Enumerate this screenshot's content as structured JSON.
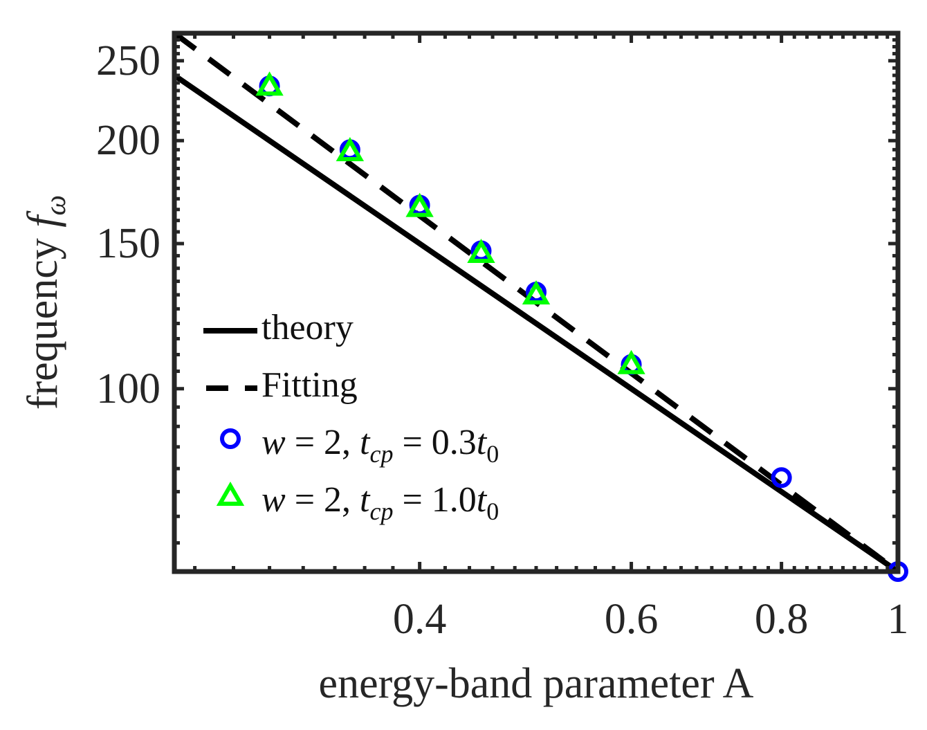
{
  "chart_data": {
    "type": "line",
    "xscale": "log",
    "yscale": "log",
    "xlabel": "energy-band parameter A",
    "ylabel_prefix": "frequency",
    "ylabel_symbol": "f",
    "ylabel_subscript": "ω",
    "xlim": [
      0.25,
      1.0
    ],
    "ylim": [
      60,
      270
    ],
    "xticks": [
      0.4,
      0.6,
      0.8,
      1.0
    ],
    "xtick_labels": [
      "0.4",
      "0.6",
      "0.8",
      "1"
    ],
    "yticks": [
      100,
      150,
      200,
      250
    ],
    "ytick_labels": [
      "100",
      "150",
      "200",
      "250"
    ],
    "legend_position": "lower-left",
    "series": [
      {
        "name": "theory",
        "style": "solid",
        "color": "#000000",
        "x": [
          0.25,
          1.0
        ],
        "y": [
          240,
          60
        ]
      },
      {
        "name": "Fitting",
        "style": "dashed",
        "color": "#000000",
        "x": [
          0.25,
          1.0
        ],
        "y": [
          270,
          60
        ]
      },
      {
        "name": "w = 2, t_cp = 0.3t_0",
        "marker": "circle",
        "color": "#0000ff",
        "x": [
          0.3,
          0.35,
          0.4,
          0.45,
          0.5,
          0.6,
          0.8,
          1.0
        ],
        "y": [
          233,
          195,
          167,
          147,
          131,
          107,
          78,
          60
        ]
      },
      {
        "name": "w = 2, t_cp = 1.0t_0",
        "marker": "triangle",
        "color": "#00ff00",
        "x": [
          0.3,
          0.35,
          0.4,
          0.45,
          0.5,
          0.6
        ],
        "y": [
          233,
          194,
          166,
          146,
          130,
          107
        ]
      }
    ],
    "legend": [
      {
        "label": "theory",
        "plain": "theory"
      },
      {
        "label": "Fitting",
        "plain": "Fitting"
      },
      {
        "w": "w",
        "eq": " = 2, ",
        "t": "t",
        "sub": "cp",
        "eq2": " = 0.3",
        "t2": "t",
        "sub2": "0"
      },
      {
        "w": "w",
        "eq": " = 2, ",
        "t": "t",
        "sub": "cp",
        "eq2": " = 1.0",
        "t2": "t",
        "sub2": "0"
      }
    ]
  }
}
